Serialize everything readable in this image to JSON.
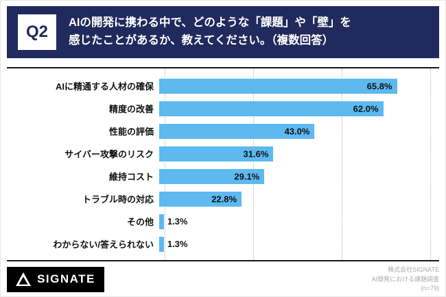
{
  "header": {
    "q_label": "Q2",
    "question_line1": "AIの開発に携わる中で、どのような「課題」や「壁」を",
    "question_line2": "感じたことがあるか、教えてください。（複数回答）",
    "bg_color": "#202a5c"
  },
  "chart_data": {
    "type": "bar",
    "orientation": "horizontal",
    "title": "AIの開発に携わる中で、どのような「課題」や「壁」を感じたことがあるか（複数回答）",
    "categories": [
      "AIに精通する人材の確保",
      "精度の改善",
      "性能の評価",
      "サイバー攻撃のリスク",
      "維持コスト",
      "トラブル時の対応",
      "その他",
      "わからない/答えられない"
    ],
    "values": [
      65.8,
      62.0,
      43.0,
      31.6,
      29.1,
      22.8,
      1.3,
      1.3
    ],
    "value_labels": [
      "65.8%",
      "62.0%",
      "43.0%",
      "31.6%",
      "29.1%",
      "22.8%",
      "1.3%",
      "1.3%"
    ],
    "xlim": [
      0,
      75
    ],
    "grid": true,
    "grid_ticks": [
      0,
      25,
      50,
      75
    ],
    "bar_color": "#5db9f0",
    "legend": "none"
  },
  "footer": {
    "logo_text": "SIGNATE",
    "source_lines": [
      "株式会社SIGNATE",
      "AI開発における課題調査",
      "(n=79)"
    ]
  }
}
